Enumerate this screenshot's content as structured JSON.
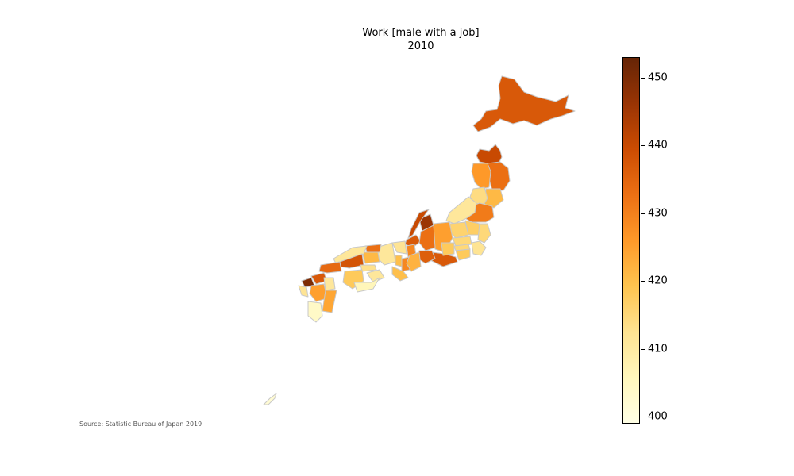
{
  "title": {
    "line1": "Work [male with a job]",
    "line2": "2010"
  },
  "source": "Source: Statistic Bureau of Japan 2019",
  "colorbar": {
    "min": 399,
    "max": 453,
    "ticks": [
      "400",
      "410",
      "420",
      "430",
      "440",
      "450"
    ],
    "colormap": "YlOrBr",
    "stops": [
      "#ffffe5",
      "#fff7bc",
      "#fee391",
      "#fec44f",
      "#fe9929",
      "#ec7014",
      "#cc4c02",
      "#993404",
      "#662506"
    ]
  },
  "map_regions": [
    {
      "name": "Hokkaido",
      "value": 437
    },
    {
      "name": "Aomori",
      "value": 440
    },
    {
      "name": "Iwate",
      "value": 433
    },
    {
      "name": "Akita",
      "value": 426
    },
    {
      "name": "Miyagi",
      "value": 421
    },
    {
      "name": "Yamagata",
      "value": 414
    },
    {
      "name": "Fukushima",
      "value": 431
    },
    {
      "name": "Niigata",
      "value": 411
    },
    {
      "name": "Toyama",
      "value": 446
    },
    {
      "name": "Ishikawa",
      "value": 440
    },
    {
      "name": "Fukui",
      "value": 437
    },
    {
      "name": "Gunma",
      "value": 416
    },
    {
      "name": "Tochigi",
      "value": 417
    },
    {
      "name": "Ibaraki",
      "value": 415
    },
    {
      "name": "Nagano",
      "value": 425
    },
    {
      "name": "Gifu",
      "value": 433
    },
    {
      "name": "Shizuoka",
      "value": 437
    },
    {
      "name": "Aichi",
      "value": 436
    },
    {
      "name": "Yamanashi",
      "value": 418
    },
    {
      "name": "Saitama",
      "value": 415
    },
    {
      "name": "Tokyo",
      "value": 415
    },
    {
      "name": "Kanagawa",
      "value": 418
    },
    {
      "name": "Chiba",
      "value": 412
    },
    {
      "name": "Shiga",
      "value": 429
    },
    {
      "name": "Kyoto",
      "value": 412
    },
    {
      "name": "Osaka",
      "value": 420
    },
    {
      "name": "Nara",
      "value": 429
    },
    {
      "name": "Mie",
      "value": 422
    },
    {
      "name": "Wakayama",
      "value": 420
    },
    {
      "name": "Hyogo",
      "value": 411
    },
    {
      "name": "Tottori",
      "value": 433
    },
    {
      "name": "Okayama",
      "value": 421
    },
    {
      "name": "Shimane",
      "value": 411
    },
    {
      "name": "Hiroshima",
      "value": 438
    },
    {
      "name": "Yamaguchi",
      "value": 434
    },
    {
      "name": "Kagawa",
      "value": 413
    },
    {
      "name": "Tokushima",
      "value": 411
    },
    {
      "name": "Ehime",
      "value": 418
    },
    {
      "name": "Kochi",
      "value": 406
    },
    {
      "name": "Fukuoka",
      "value": 437
    },
    {
      "name": "Saga",
      "value": 450
    },
    {
      "name": "Nagasaki",
      "value": 412
    },
    {
      "name": "Oita",
      "value": 411
    },
    {
      "name": "Kumamoto",
      "value": 425
    },
    {
      "name": "Miyazaki",
      "value": 424
    },
    {
      "name": "Kagoshima",
      "value": 404
    },
    {
      "name": "Okinawa",
      "value": 402
    }
  ]
}
